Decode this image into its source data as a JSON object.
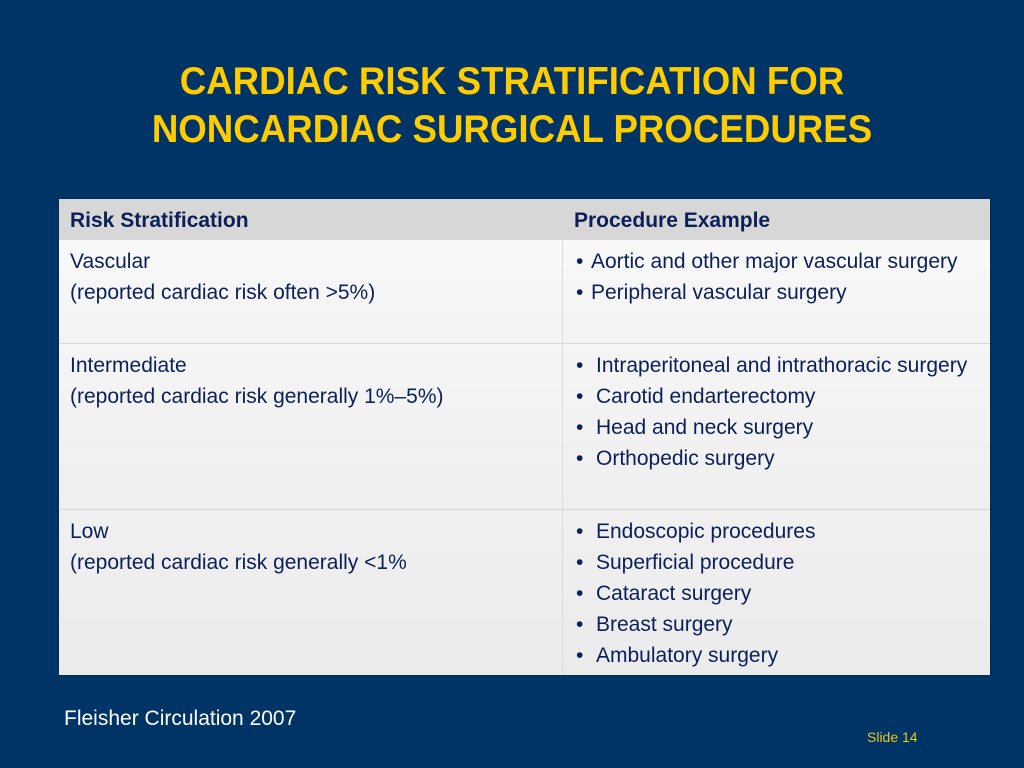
{
  "slide": {
    "title_line1": "CARDIAC RISK STRATIFICATION FOR",
    "title_line2": "NONCARDIAC SURGICAL PROCEDURES",
    "colors": {
      "background": "#003466",
      "title": "#ffcc00",
      "table_text": "#0b2058",
      "header_bg": "#d7d7d7",
      "slide_number": "#e7c820"
    }
  },
  "table": {
    "headers": [
      "Risk Stratification",
      "Procedure Example"
    ],
    "rows": [
      {
        "risk": "Vascular",
        "risk_note": "(reported cardiac risk often >5%)",
        "procedures": [
          "Aortic and other major vascular surgery",
          "Peripheral vascular surgery"
        ]
      },
      {
        "risk": "Intermediate",
        "risk_note": "(reported cardiac risk generally 1%–5%)",
        "procedures": [
          "Intraperitoneal and intrathoracic surgery",
          "Carotid endarterectomy",
          "Head and neck surgery",
          "Orthopedic surgery"
        ]
      },
      {
        "risk": "Low",
        "risk_note": "(reported cardiac risk generally <1%",
        "procedures": [
          "Endoscopic procedures",
          "Superficial procedure",
          "Cataract surgery",
          "Breast surgery",
          "Ambulatory surgery"
        ]
      }
    ],
    "bullet": "•"
  },
  "footer": {
    "source": "Fleisher Circulation 2007",
    "slide_number": "Slide 14"
  }
}
